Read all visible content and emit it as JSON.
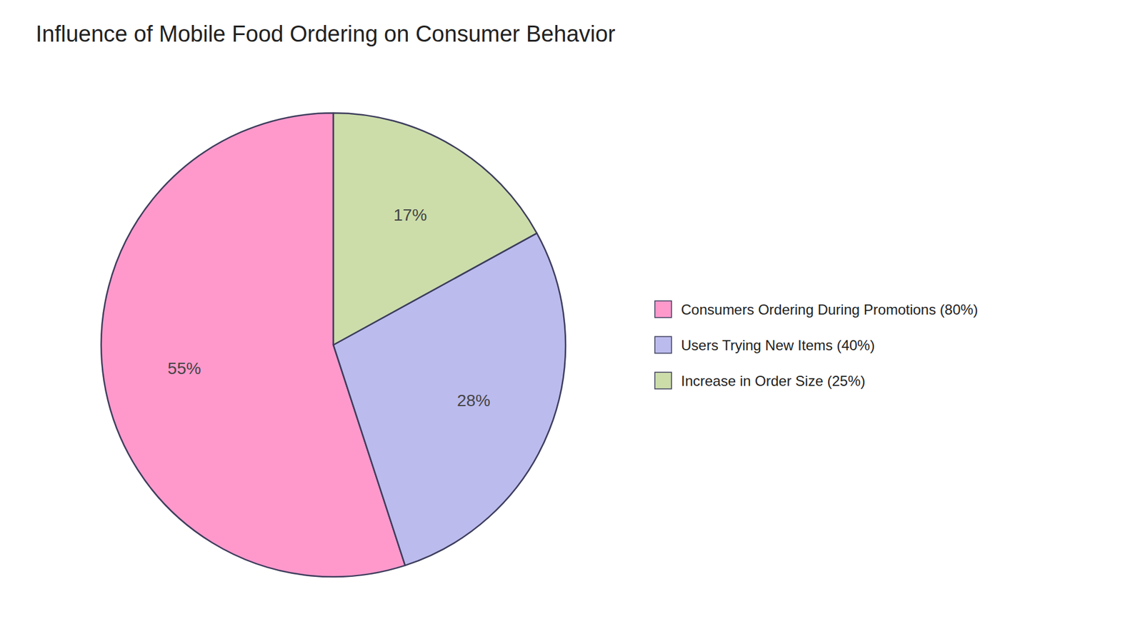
{
  "chart_data": {
    "type": "pie",
    "title": "Influence of Mobile Food Ordering on Consumer Behavior",
    "categories": [
      "Consumers Ordering During Promotions (80%)",
      "Users Trying New Items (40%)",
      "Increase in Order Size (25%)"
    ],
    "values": [
      55,
      28,
      17
    ],
    "value_labels": [
      "55%",
      "28%",
      "17%"
    ],
    "colors": [
      "#FF99CC",
      "#BBBBEE",
      "#CCDDAA"
    ],
    "data_labels": true,
    "legend": "right"
  }
}
